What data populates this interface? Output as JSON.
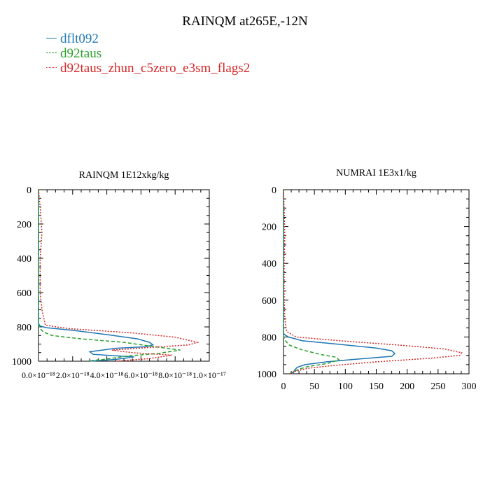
{
  "title": "RAINQM at265E,-12N",
  "legend": [
    {
      "name": "dflt092",
      "color": "#1f77b4",
      "dash": "solid"
    },
    {
      "name": "d92taus",
      "color": "#2ca02c",
      "dash": "dashed"
    },
    {
      "name": "d92taus_zhun_c5zero_e3sm_flags2",
      "color": "#d62728",
      "dash": "dotted"
    }
  ],
  "chart_data": [
    {
      "type": "line",
      "title": "RAINQM  1E12xkg/kg",
      "xlabel": "",
      "ylabel": "",
      "xlim": [
        0,
        1e-17
      ],
      "ylim": [
        1000,
        0
      ],
      "xticks": [
        0,
        2e-18,
        4e-18,
        6e-18,
        8e-18,
        1e-17
      ],
      "xtick_labels": [
        "0.0×10⁻¹⁸",
        "2.0×10⁻¹⁸",
        "4.0×10⁻¹⁸",
        "6.0×10⁻¹⁸",
        "8.0×10⁻¹⁸",
        "1.0×10⁻¹⁷"
      ],
      "yticks": [
        0,
        200,
        400,
        600,
        800,
        1000
      ],
      "ytick_labels": [
        "0",
        "200",
        "400",
        "600",
        "800",
        "1000"
      ],
      "series": [
        {
          "name": "dflt092",
          "color": "#1f77b4",
          "dash": "solid",
          "x": [
            0,
            0,
            1e-19,
            5e-19,
            2e-18,
            4e-18,
            5.8e-18,
            6.5e-18,
            6.7e-18,
            6.3e-18,
            4.5e-18,
            3e-18,
            3.2e-18,
            5.6e-18,
            4.5e-18,
            3e-18
          ],
          "y": [
            0,
            780,
            795,
            805,
            820,
            845,
            870,
            890,
            905,
            915,
            925,
            945,
            960,
            975,
            990,
            1000
          ]
        },
        {
          "name": "d92taus",
          "color": "#2ca02c",
          "dash": "dashed",
          "x": [
            0,
            0,
            1e-19,
            3e-19,
            8e-19,
            2.5e-18,
            5e-18,
            6.8e-18,
            8.3e-18,
            7e-18,
            5.2e-18,
            4.5e-18,
            3.8e-18,
            3.2e-18,
            3e-18
          ],
          "y": [
            0,
            790,
            810,
            830,
            850,
            870,
            890,
            915,
            935,
            955,
            970,
            980,
            990,
            995,
            1000
          ]
        },
        {
          "name": "d92taus_zhun_c5zero_e3sm_flags2",
          "color": "#d62728",
          "dash": "dotted",
          "x": [
            0,
            1e-19,
            2e-19,
            1e-19,
            1e-19,
            2e-19,
            4e-19,
            1.8e-18,
            5.5e-18,
            8e-18,
            9.3e-18,
            8.8e-18,
            6.5e-18,
            4.3e-18,
            5.5e-18,
            7.8e-18,
            6.5e-18,
            4.5e-18
          ],
          "y": [
            0,
            100,
            250,
            400,
            600,
            700,
            790,
            810,
            835,
            860,
            890,
            905,
            920,
            935,
            950,
            965,
            985,
            1000
          ]
        }
      ]
    },
    {
      "type": "line",
      "title": "NUMRAI  1E3x1/kg",
      "xlabel": "",
      "ylabel": "",
      "xlim": [
        0,
        300
      ],
      "ylim": [
        1000,
        0
      ],
      "xticks": [
        0,
        50,
        100,
        150,
        200,
        250,
        300
      ],
      "xtick_labels": [
        "0",
        "50",
        "100",
        "150",
        "200",
        "250",
        "300"
      ],
      "yticks": [
        0,
        200,
        400,
        600,
        800,
        1000
      ],
      "ytick_labels": [
        "0",
        "200",
        "400",
        "600",
        "800",
        "1000"
      ],
      "series": [
        {
          "name": "dflt092",
          "color": "#1f77b4",
          "dash": "solid",
          "x": [
            0,
            0,
            3,
            8,
            30,
            90,
            150,
            175,
            180,
            175,
            120,
            70,
            35,
            22,
            18,
            15
          ],
          "y": [
            0,
            780,
            790,
            800,
            820,
            840,
            860,
            875,
            890,
            905,
            920,
            935,
            950,
            965,
            980,
            1000
          ]
        },
        {
          "name": "d92taus",
          "color": "#2ca02c",
          "dash": "dashed",
          "x": [
            0,
            0,
            3,
            10,
            30,
            60,
            85,
            90,
            70,
            40,
            25,
            15,
            10
          ],
          "y": [
            0,
            800,
            820,
            845,
            870,
            895,
            910,
            925,
            945,
            960,
            975,
            990,
            1000
          ]
        },
        {
          "name": "d92taus_zhun_c5zero_e3sm_flags2",
          "color": "#d62728",
          "dash": "dotted",
          "x": [
            0,
            1,
            2,
            1,
            1,
            2,
            5,
            20,
            90,
            190,
            260,
            288,
            285,
            240,
            150,
            80,
            40,
            20,
            10
          ],
          "y": [
            0,
            100,
            250,
            400,
            600,
            700,
            770,
            800,
            820,
            845,
            865,
            885,
            900,
            915,
            935,
            955,
            970,
            985,
            1000
          ]
        }
      ]
    }
  ]
}
